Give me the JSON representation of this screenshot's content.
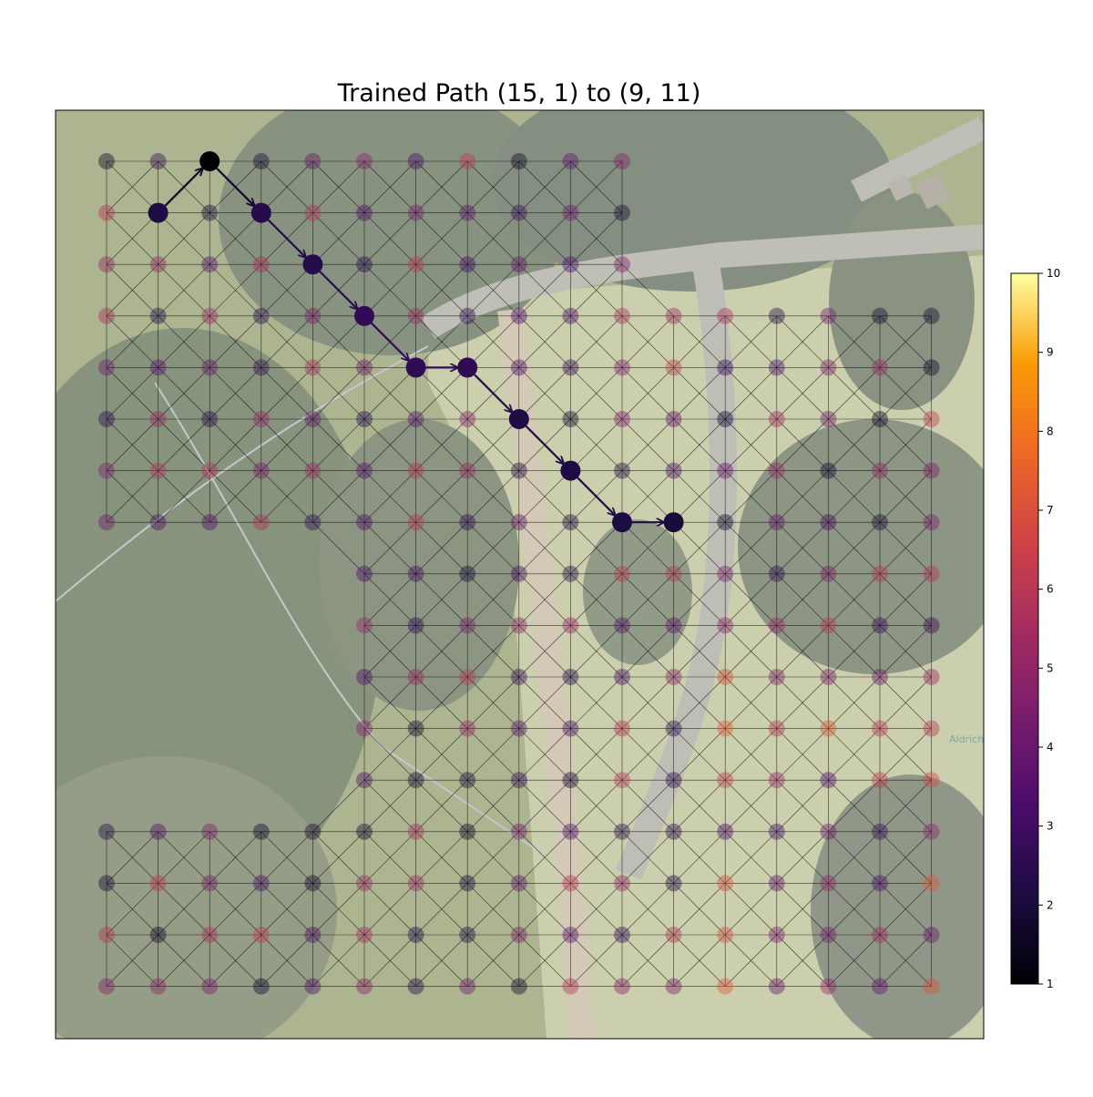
{
  "chart_data": {
    "type": "scatter",
    "title": "Trained Path (15, 1) to (9, 11)",
    "xlabel": "",
    "ylabel": "",
    "grid": "graph lattice with diagonal edges",
    "background": "aerial satellite photo (faded)",
    "rows": 17,
    "cols": 17,
    "missing_nodes": [
      [
        0,
        11
      ],
      [
        0,
        12
      ],
      [
        0,
        13
      ],
      [
        0,
        14
      ],
      [
        0,
        15
      ],
      [
        0,
        16
      ],
      [
        1,
        11
      ],
      [
        1,
        12
      ],
      [
        1,
        13
      ],
      [
        1,
        14
      ],
      [
        1,
        15
      ],
      [
        1,
        16
      ],
      [
        2,
        11
      ],
      [
        2,
        12
      ],
      [
        2,
        13
      ],
      [
        2,
        14
      ],
      [
        2,
        15
      ],
      [
        2,
        16
      ],
      [
        8,
        0
      ],
      [
        8,
        1
      ],
      [
        8,
        2
      ],
      [
        8,
        3
      ],
      [
        8,
        4
      ],
      [
        9,
        0
      ],
      [
        9,
        1
      ],
      [
        9,
        2
      ],
      [
        9,
        3
      ],
      [
        9,
        4
      ],
      [
        10,
        0
      ],
      [
        10,
        1
      ],
      [
        10,
        2
      ],
      [
        10,
        3
      ],
      [
        10,
        4
      ],
      [
        11,
        0
      ],
      [
        11,
        1
      ],
      [
        11,
        2
      ],
      [
        11,
        3
      ],
      [
        11,
        4
      ],
      [
        12,
        0
      ],
      [
        12,
        1
      ],
      [
        12,
        2
      ],
      [
        12,
        3
      ],
      [
        12,
        4
      ]
    ],
    "path_nodes": [
      {
        "row": 1,
        "col": 1,
        "value": 2.2
      },
      {
        "row": 0,
        "col": 2,
        "value": 1.0
      },
      {
        "row": 1,
        "col": 3,
        "value": 2.4
      },
      {
        "row": 2,
        "col": 4,
        "value": 2.4
      },
      {
        "row": 3,
        "col": 5,
        "value": 2.6
      },
      {
        "row": 4,
        "col": 6,
        "value": 2.6
      },
      {
        "row": 4,
        "col": 7,
        "value": 2.6
      },
      {
        "row": 5,
        "col": 8,
        "value": 2.2
      },
      {
        "row": 6,
        "col": 9,
        "value": 2.2
      },
      {
        "row": 7,
        "col": 10,
        "value": 2.2
      },
      {
        "row": 7,
        "col": 11,
        "value": 2.0
      }
    ],
    "colorbar": {
      "cmap": "inferno",
      "min": 1,
      "max": 10,
      "ticks": [
        "1",
        "2",
        "3",
        "4",
        "5",
        "6",
        "7",
        "8",
        "9",
        "10"
      ]
    },
    "annotations": [
      "Aldrich"
    ]
  }
}
